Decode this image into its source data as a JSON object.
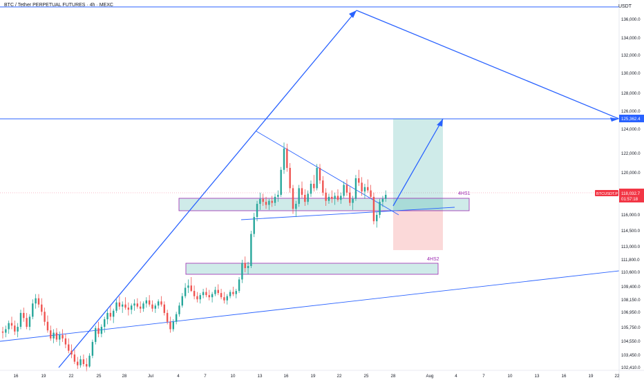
{
  "header": {
    "symbol_title": "BTC / Tether PERPETUAL FUTURES · 4h · MEXC",
    "currency": "USDT"
  },
  "chart_data": {
    "type": "candlestick",
    "y_ticks": [
      "136,000.0",
      "134,000.0",
      "132,000.0",
      "130,000.0",
      "128,000.0",
      "126,000.0",
      "124,000.0",
      "122,000.0",
      "120,000.0",
      "118,000.0",
      "116,000.0",
      "114,500.0",
      "113,000.0",
      "111,800.0",
      "110,600.0",
      "109,400.0",
      "108,150.0",
      "106,950.0",
      "105,750.0",
      "104,550.0",
      "103,450.0",
      "102,410.0"
    ],
    "x_ticks": [
      "16",
      "19",
      "22",
      "25",
      "28",
      "Jul",
      "4",
      "7",
      "10",
      "13",
      "16",
      "19",
      "22",
      "25",
      "28",
      "Aug",
      "4",
      "7",
      "10",
      "13",
      "16",
      "19",
      "22"
    ],
    "price_label": {
      "symbol": "BTCUSDT.P",
      "price": "118,032.7",
      "countdown": "01:57:18"
    },
    "level_label": "125,362.4",
    "zones": [
      {
        "name": "4HS1",
        "label": "4HS1",
        "top": 117500,
        "bottom": 116150
      },
      {
        "name": "4HS2",
        "label": "4HS2",
        "top": 111000,
        "bottom": 110300
      }
    ],
    "candles": [
      [
        105.4,
        105.8,
        104.8,
        105.3
      ],
      [
        105.3,
        105.9,
        104.9,
        105.6
      ],
      [
        105.6,
        106.3,
        105.2,
        106.1
      ],
      [
        106.1,
        106.6,
        105.6,
        105.9
      ],
      [
        105.9,
        106.3,
        105.1,
        105.4
      ],
      [
        105.4,
        106.1,
        104.9,
        105.8
      ],
      [
        105.8,
        107.2,
        105.6,
        106.9
      ],
      [
        106.9,
        107.4,
        106.2,
        106.5
      ],
      [
        106.5,
        106.9,
        105.6,
        105.8
      ],
      [
        105.8,
        106.8,
        105.5,
        106.6
      ],
      [
        106.6,
        108.2,
        106.4,
        107.8
      ],
      [
        107.8,
        108.7,
        107.3,
        108.3
      ],
      [
        108.3,
        108.7,
        107.4,
        107.7
      ],
      [
        107.7,
        108.3,
        106.7,
        107.0
      ],
      [
        107.0,
        107.4,
        105.9,
        106.2
      ],
      [
        106.2,
        106.7,
        105.3,
        105.5
      ],
      [
        105.5,
        105.9,
        104.6,
        104.8
      ],
      [
        104.8,
        105.6,
        104.4,
        105.3
      ],
      [
        105.3,
        105.7,
        104.5,
        104.7
      ],
      [
        104.7,
        105.4,
        104.2,
        105.1
      ],
      [
        105.1,
        105.6,
        104.5,
        104.8
      ],
      [
        104.8,
        105.2,
        104.0,
        104.3
      ],
      [
        104.3,
        104.8,
        103.6,
        103.8
      ],
      [
        103.8,
        104.3,
        103.2,
        103.5
      ],
      [
        103.5,
        103.9,
        102.7,
        102.9
      ],
      [
        102.9,
        103.3,
        102.3,
        102.6
      ],
      [
        102.6,
        103.4,
        102.4,
        103.1
      ],
      [
        103.1,
        103.5,
        102.5,
        102.7
      ],
      [
        102.7,
        103.2,
        102.1,
        102.5
      ],
      [
        102.5,
        103.6,
        102.4,
        103.4
      ],
      [
        103.4,
        104.7,
        103.2,
        104.5
      ],
      [
        104.5,
        105.9,
        104.3,
        105.7
      ],
      [
        105.7,
        106.2,
        104.9,
        105.2
      ],
      [
        105.2,
        106.0,
        104.9,
        105.8
      ],
      [
        105.8,
        106.6,
        105.3,
        106.4
      ],
      [
        106.4,
        107.2,
        106.0,
        106.9
      ],
      [
        106.9,
        107.6,
        106.3,
        106.6
      ],
      [
        106.6,
        107.3,
        106.1,
        107.1
      ],
      [
        107.1,
        108.2,
        106.9,
        107.9
      ],
      [
        107.9,
        108.5,
        107.2,
        107.5
      ],
      [
        107.5,
        108.0,
        106.9,
        107.7
      ],
      [
        107.7,
        108.4,
        107.2,
        107.4
      ],
      [
        107.4,
        107.9,
        106.7,
        107.2
      ],
      [
        107.2,
        107.8,
        106.8,
        107.6
      ],
      [
        107.6,
        108.2,
        107.1,
        107.8
      ],
      [
        107.8,
        108.3,
        107.3,
        107.5
      ],
      [
        107.5,
        108.0,
        106.9,
        107.3
      ],
      [
        107.3,
        108.0,
        107.0,
        107.8
      ],
      [
        107.8,
        108.4,
        107.4,
        108.1
      ],
      [
        108.1,
        108.6,
        107.5,
        107.7
      ],
      [
        107.7,
        108.1,
        107.0,
        107.3
      ],
      [
        107.3,
        107.8,
        106.9,
        107.6
      ],
      [
        107.6,
        108.2,
        107.3,
        108.0
      ],
      [
        108.0,
        108.5,
        107.5,
        107.7
      ],
      [
        107.7,
        108.0,
        106.7,
        106.9
      ],
      [
        106.9,
        107.2,
        106.0,
        106.2
      ],
      [
        106.2,
        106.6,
        105.3,
        105.6
      ],
      [
        105.6,
        106.4,
        105.4,
        106.2
      ],
      [
        106.2,
        107.0,
        106.0,
        106.8
      ],
      [
        106.8,
        107.9,
        106.6,
        107.6
      ],
      [
        107.6,
        108.8,
        107.4,
        108.5
      ],
      [
        108.5,
        109.7,
        108.3,
        109.3
      ],
      [
        109.3,
        110.0,
        108.8,
        109.5
      ],
      [
        109.5,
        110.2,
        108.9,
        109.0
      ],
      [
        109.0,
        109.5,
        108.2,
        108.5
      ],
      [
        108.5,
        108.9,
        107.9,
        108.2
      ],
      [
        108.2,
        108.8,
        107.8,
        108.6
      ],
      [
        108.6,
        109.2,
        108.3,
        108.9
      ],
      [
        108.9,
        109.3,
        108.4,
        108.6
      ],
      [
        108.6,
        109.1,
        108.1,
        108.4
      ],
      [
        108.4,
        108.9,
        107.9,
        108.7
      ],
      [
        108.7,
        109.4,
        108.5,
        109.1
      ],
      [
        109.1,
        109.6,
        108.6,
        108.8
      ],
      [
        108.8,
        109.2,
        108.2,
        108.4
      ],
      [
        108.4,
        108.9,
        107.8,
        108.1
      ],
      [
        108.1,
        108.7,
        107.7,
        108.5
      ],
      [
        108.5,
        109.1,
        108.3,
        108.9
      ],
      [
        108.9,
        109.4,
        108.5,
        108.7
      ],
      [
        108.7,
        109.2,
        108.3,
        109.0
      ],
      [
        109.0,
        110.2,
        108.8,
        110.0
      ],
      [
        110.0,
        111.8,
        109.7,
        111.5
      ],
      [
        111.5,
        112.1,
        110.6,
        111.0
      ],
      [
        111.0,
        111.6,
        110.4,
        111.2
      ],
      [
        111.2,
        114.5,
        111.0,
        114.2
      ],
      [
        114.2,
        116.2,
        113.9,
        115.8
      ],
      [
        115.8,
        117.4,
        115.4,
        117.1
      ],
      [
        117.1,
        118.2,
        116.5,
        117.6
      ],
      [
        117.6,
        118.1,
        116.9,
        117.3
      ],
      [
        117.3,
        117.8,
        116.6,
        117.0
      ],
      [
        117.0,
        117.6,
        116.5,
        117.4
      ],
      [
        117.4,
        117.9,
        116.8,
        117.2
      ],
      [
        117.2,
        118.1,
        116.9,
        117.8
      ],
      [
        117.8,
        118.4,
        117.3,
        118.0
      ],
      [
        118.0,
        120.6,
        117.8,
        120.3
      ],
      [
        120.3,
        122.9,
        119.9,
        122.4
      ],
      [
        122.4,
        122.8,
        120.1,
        120.5
      ],
      [
        120.5,
        121.0,
        118.2,
        118.6
      ],
      [
        118.6,
        118.9,
        116.1,
        116.6
      ],
      [
        116.6,
        117.4,
        115.8,
        117.1
      ],
      [
        117.1,
        118.9,
        116.8,
        118.6
      ],
      [
        118.6,
        119.2,
        117.7,
        118.0
      ],
      [
        118.0,
        118.5,
        116.9,
        117.3
      ],
      [
        117.3,
        118.4,
        117.0,
        118.1
      ],
      [
        118.1,
        119.3,
        117.8,
        119.0
      ],
      [
        119.0,
        119.8,
        118.3,
        118.6
      ],
      [
        118.6,
        120.9,
        118.4,
        120.5
      ],
      [
        120.5,
        120.9,
        119.0,
        119.3
      ],
      [
        119.3,
        119.7,
        117.9,
        118.2
      ],
      [
        118.2,
        118.6,
        116.9,
        117.4
      ],
      [
        117.4,
        118.1,
        117.1,
        117.8
      ],
      [
        117.8,
        118.4,
        117.2,
        117.6
      ],
      [
        117.6,
        118.2,
        117.0,
        117.9
      ],
      [
        117.9,
        118.5,
        117.3,
        117.5
      ],
      [
        117.5,
        118.2,
        117.1,
        117.9
      ],
      [
        117.9,
        119.2,
        117.7,
        118.9
      ],
      [
        118.9,
        119.4,
        117.9,
        118.2
      ],
      [
        118.2,
        118.7,
        116.9,
        117.2
      ],
      [
        117.2,
        117.9,
        116.5,
        117.6
      ],
      [
        117.6,
        119.8,
        117.4,
        119.5
      ],
      [
        119.5,
        120.3,
        118.8,
        119.1
      ],
      [
        119.1,
        119.6,
        117.9,
        118.3
      ],
      [
        118.3,
        119.0,
        117.6,
        118.7
      ],
      [
        118.7,
        119.4,
        118.2,
        118.4
      ],
      [
        118.4,
        118.9,
        117.6,
        117.8
      ],
      [
        117.8,
        118.2,
        115.1,
        115.4
      ],
      [
        115.4,
        116.3,
        114.8,
        116.0
      ],
      [
        116.0,
        117.6,
        115.7,
        117.3
      ],
      [
        117.3,
        117.9,
        116.8,
        117.6
      ],
      [
        117.6,
        118.4,
        117.3,
        118.0
      ]
    ]
  }
}
